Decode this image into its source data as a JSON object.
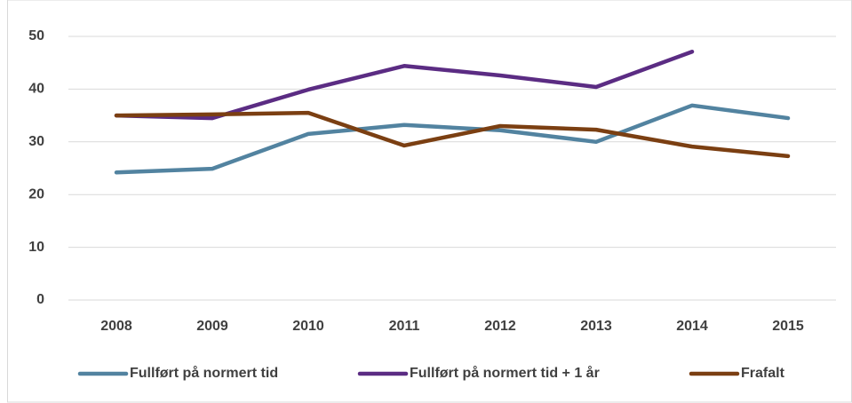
{
  "chart_data": {
    "type": "line",
    "categories": [
      "2008",
      "2009",
      "2010",
      "2011",
      "2012",
      "2013",
      "2014",
      "2015"
    ],
    "series": [
      {
        "name": "Fullført på normert tid",
        "color": "#5283a0",
        "values": [
          24.2,
          24.9,
          31.5,
          33.2,
          32.2,
          30.0,
          36.9,
          34.5
        ]
      },
      {
        "name": "Fullført på normert tid + 1 år",
        "color": "#5b2c83",
        "values": [
          35.0,
          34.5,
          39.9,
          44.4,
          42.6,
          40.4,
          47.1,
          null
        ]
      },
      {
        "name": "Frafalt",
        "color": "#7b3f12",
        "values": [
          35.0,
          35.2,
          35.5,
          29.3,
          33.0,
          32.3,
          29.1,
          27.3
        ]
      }
    ],
    "ylim": [
      0,
      50
    ],
    "yticks": [
      0,
      10,
      20,
      30,
      40,
      50
    ],
    "grid": true,
    "legend": "bottom"
  }
}
